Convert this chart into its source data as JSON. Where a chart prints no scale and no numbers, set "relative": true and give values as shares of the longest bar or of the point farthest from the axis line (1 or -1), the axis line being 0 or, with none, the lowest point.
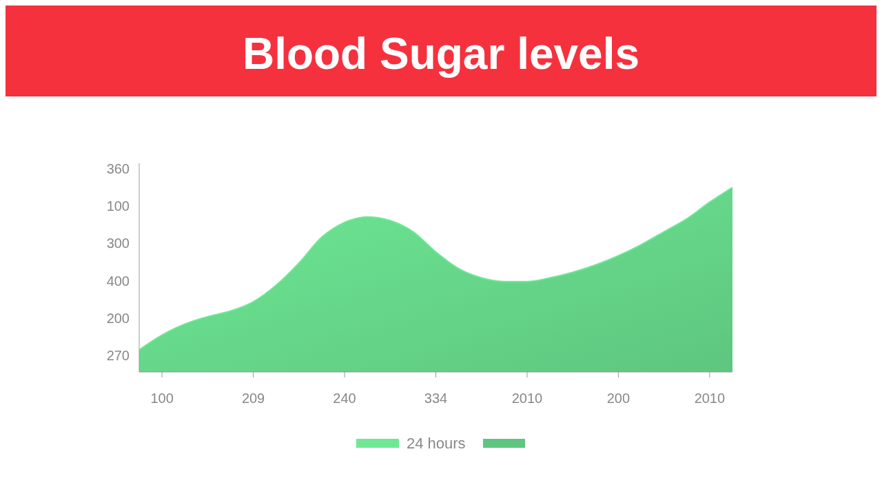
{
  "chart_data": {
    "type": "area",
    "title": "Blood Sugar levels",
    "relative": true,
    "categories": [
      null,
      "100",
      null,
      null,
      null,
      "209",
      null,
      null,
      null,
      "240",
      null,
      null,
      null,
      "334",
      null,
      null,
      null,
      "2010",
      null,
      null,
      null,
      "200",
      null,
      null,
      null,
      "2010",
      null
    ],
    "series": [
      {
        "name": "24 hours",
        "color": "#6ee895",
        "values": [
          0.12,
          0.2,
          0.26,
          0.3,
          0.33,
          0.38,
          0.47,
          0.59,
          0.73,
          0.81,
          0.84,
          0.82,
          0.76,
          0.65,
          0.56,
          0.51,
          0.49,
          0.49,
          0.51,
          0.54,
          0.58,
          0.63,
          0.69,
          0.76,
          0.83,
          0.92,
          1
        ]
      }
    ],
    "annotations": [
      "360",
      "100",
      "300",
      "400",
      "200",
      "270"
    ],
    "legend": "bottom"
  }
}
